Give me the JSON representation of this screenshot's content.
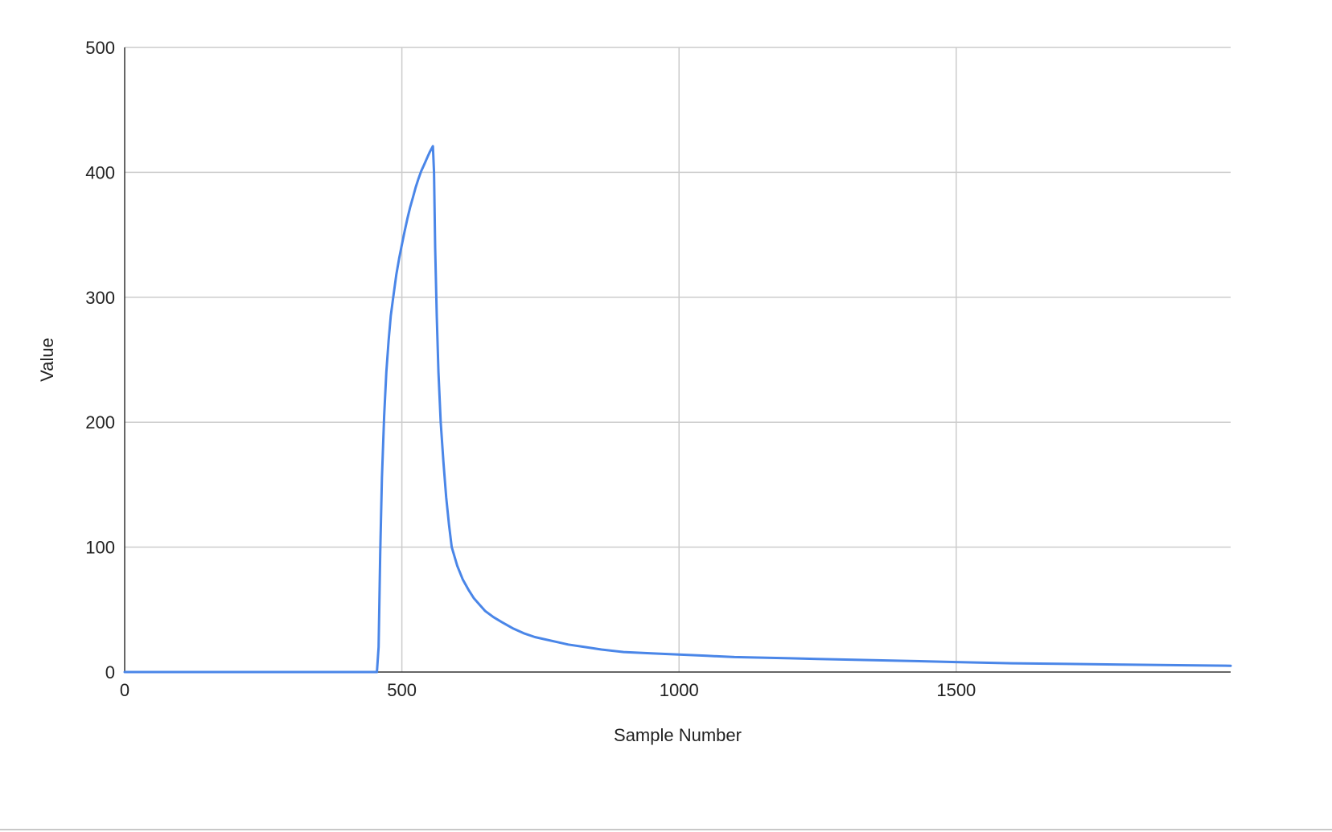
{
  "chart_data": {
    "type": "line",
    "title": "",
    "xlabel": "Sample Number",
    "ylabel": "Value",
    "xlim": [
      0,
      1995
    ],
    "ylim": [
      0,
      500
    ],
    "x_ticks": [
      0,
      500,
      1000,
      1500
    ],
    "y_ticks": [
      0,
      100,
      200,
      300,
      400,
      500
    ],
    "grid": true,
    "legend": "none",
    "colors": {
      "series": "#4a86e8",
      "grid": "#cccccc",
      "axis": "#333333"
    },
    "series": [
      {
        "values_x": [
          0,
          100,
          200,
          300,
          400,
          455,
          458,
          461,
          464,
          468,
          472,
          476,
          480,
          485,
          490,
          495,
          500,
          505,
          510,
          515,
          520,
          525,
          530,
          535,
          540,
          545,
          550,
          556,
          558,
          560,
          563,
          566,
          570,
          575,
          580,
          585,
          590,
          600,
          610,
          620,
          630,
          640,
          650,
          665,
          680,
          700,
          720,
          740,
          760,
          780,
          800,
          830,
          860,
          900,
          950,
          1000,
          1050,
          1100,
          1150,
          1200,
          1250,
          1300,
          1400,
          1500,
          1600,
          1700,
          1800,
          1900,
          1995
        ],
        "values_y": [
          0,
          0,
          0,
          0,
          0,
          0,
          20,
          95,
          155,
          205,
          240,
          265,
          285,
          302,
          318,
          331,
          342,
          353,
          363,
          372,
          380,
          388,
          395,
          401,
          406,
          411,
          416,
          421,
          400,
          340,
          285,
          240,
          200,
          168,
          140,
          118,
          100,
          85,
          74,
          66,
          59,
          54,
          49,
          44,
          40,
          35,
          31,
          28,
          26,
          24,
          22,
          20,
          18,
          16,
          15,
          14,
          13,
          12,
          11.5,
          11,
          10.5,
          10,
          9,
          8,
          7,
          6.5,
          6,
          5.5,
          5
        ]
      }
    ]
  }
}
